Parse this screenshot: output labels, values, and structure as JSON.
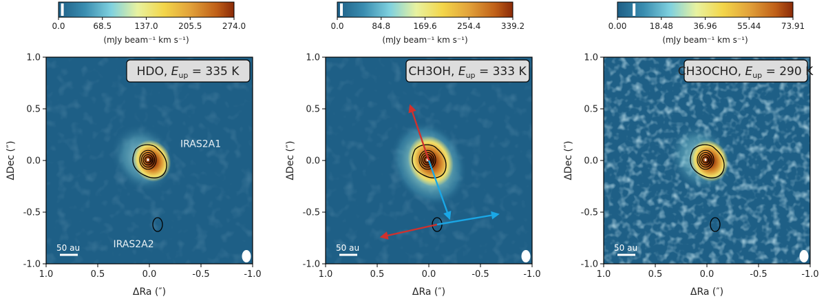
{
  "chart_data": [
    {
      "type": "heatmap",
      "title": "HDO, E_up = 335 K",
      "title_species": "HDO",
      "title_energy": "= 335 K",
      "xlabel": "ΔRa (″)",
      "ylabel": "ΔDec (″)",
      "xlim": [
        1.0,
        -1.0
      ],
      "ylim": [
        -1.0,
        1.0
      ],
      "xticks": [
        "1.0",
        "0.5",
        "0.0",
        "-0.5",
        "-1.0"
      ],
      "yticks": [
        "1.0",
        "0.5",
        "0.0",
        "-0.5",
        "-1.0"
      ],
      "colorbar": {
        "ticks": [
          "0.0",
          "68.5",
          "137.0",
          "205.5",
          "274.0"
        ],
        "range": [
          0.0,
          274.0
        ],
        "label": "(mJy beam⁻¹ km s⁻¹)",
        "marker_value": 6
      },
      "sources": [
        {
          "name": "IRAS2A1",
          "x": 0.0,
          "y": 0.0
        },
        {
          "name": "IRAS2A2",
          "x": -0.08,
          "y": -0.62
        }
      ],
      "scalebar_label": "50 au",
      "arrows": []
    },
    {
      "type": "heatmap",
      "title": "CH3OH, E_up = 333 K",
      "title_species": "CH3OH",
      "title_energy": "= 333 K",
      "xlabel": "ΔRa (″)",
      "ylabel": "ΔDec (″)",
      "xlim": [
        1.0,
        -1.0
      ],
      "ylim": [
        -1.0,
        1.0
      ],
      "xticks": [
        "1.0",
        "0.5",
        "0.0",
        "-0.5",
        "-1.0"
      ],
      "yticks": [
        "1.0",
        "0.5",
        "0.0",
        "-0.5",
        "-1.0"
      ],
      "colorbar": {
        "ticks": [
          "0.0",
          "84.8",
          "169.6",
          "254.4",
          "339.2"
        ],
        "range": [
          0.0,
          339.2
        ],
        "label": "(mJy beam⁻¹ km s⁻¹)",
        "marker_value": 8
      },
      "sources": [
        {
          "name": "",
          "x": 0.0,
          "y": 0.0
        },
        {
          "name": "",
          "x": -0.08,
          "y": -0.62
        }
      ],
      "scalebar_label": "50 au",
      "arrows": [
        {
          "color": "red",
          "from": [
            0.0,
            0.0
          ],
          "to": [
            0.18,
            0.53
          ]
        },
        {
          "color": "blue",
          "from": [
            0.0,
            0.0
          ],
          "to": [
            -0.2,
            -0.56
          ]
        },
        {
          "color": "red",
          "from": [
            -0.08,
            -0.62
          ],
          "to": [
            0.46,
            -0.74
          ]
        },
        {
          "color": "blue",
          "from": [
            -0.08,
            -0.62
          ],
          "to": [
            -0.67,
            -0.52
          ]
        }
      ]
    },
    {
      "type": "heatmap",
      "title": "CH3OCHO, E_up = 290 K",
      "title_species": "CH3OCHO",
      "title_energy": "= 290 K",
      "xlabel": "ΔRa (″)",
      "ylabel": "ΔDec (″)",
      "xlim": [
        1.0,
        -1.0
      ],
      "ylim": [
        -1.0,
        1.0
      ],
      "xticks": [
        "1.0",
        "0.5",
        "0.0",
        "-0.5",
        "-1.0"
      ],
      "yticks": [
        "1.0",
        "0.5",
        "0.0",
        "-0.5",
        "-1.0"
      ],
      "colorbar": {
        "ticks": [
          "0.00",
          "18.48",
          "36.96",
          "55.44",
          "73.91"
        ],
        "range": [
          0.0,
          73.91
        ],
        "label": "(mJy beam⁻¹ km s⁻¹)",
        "marker_value": 7
      },
      "sources": [
        {
          "name": "",
          "x": 0.0,
          "y": 0.0
        },
        {
          "name": "",
          "x": -0.08,
          "y": -0.62
        }
      ],
      "scalebar_label": "50 au",
      "arrows": []
    }
  ],
  "colors": {
    "background": "#1e5f86",
    "red_arrow": "#d0312d",
    "blue_arrow": "#1aa7e6",
    "contour": "#000000"
  }
}
